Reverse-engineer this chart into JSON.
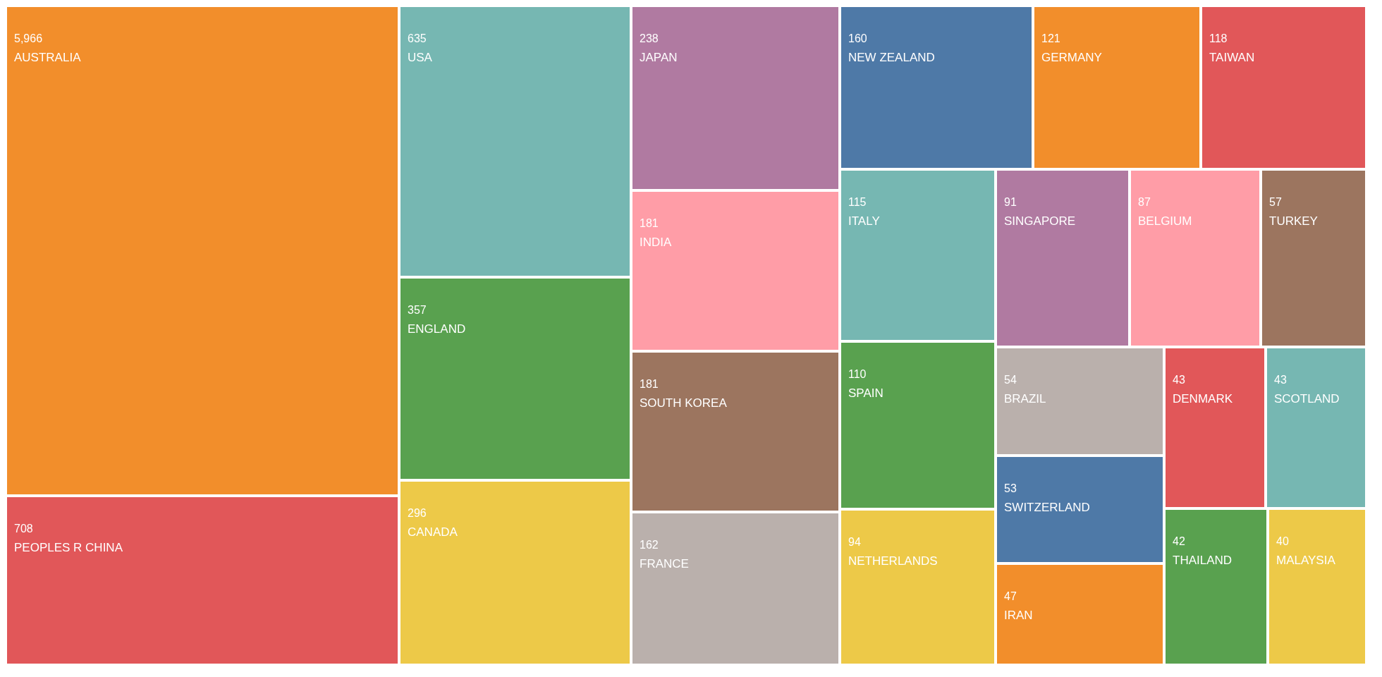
{
  "chart_data": {
    "type": "other",
    "categories": [
      "AUSTRALIA",
      "PEOPLES R CHINA",
      "USA",
      "ENGLAND",
      "CANADA",
      "JAPAN",
      "INDIA",
      "SOUTH KOREA",
      "FRANCE",
      "NEW ZEALAND",
      "GERMANY",
      "TAIWAN",
      "ITALY",
      "SPAIN",
      "NETHERLANDS",
      "SINGAPORE",
      "BELGIUM",
      "TURKEY",
      "BRAZIL",
      "SWITZERLAND",
      "IRAN",
      "DENMARK",
      "SCOTLAND",
      "THAILAND",
      "MALAYSIA"
    ],
    "values": [
      5966,
      708,
      635,
      357,
      296,
      238,
      181,
      181,
      162,
      160,
      121,
      118,
      115,
      110,
      94,
      91,
      87,
      57,
      54,
      53,
      47,
      43,
      43,
      42,
      40
    ],
    "value_labels": [
      "5,966",
      "708",
      "635",
      "357",
      "296",
      "238",
      "181",
      "181",
      "162",
      "160",
      "121",
      "118",
      "115",
      "110",
      "94",
      "91",
      "87",
      "57",
      "54",
      "53",
      "47",
      "43",
      "43",
      "42",
      "40"
    ],
    "colors": [
      "#f28e2b",
      "#e15759",
      "#76b7b2",
      "#59a14f",
      "#edc948",
      "#b07aa1",
      "#ff9da7",
      "#9c755f",
      "#bab0ac",
      "#4e79a7",
      "#f28e2b",
      "#e15759",
      "#76b7b2",
      "#59a14f",
      "#edc948",
      "#b07aa1",
      "#ff9da7",
      "#9c755f",
      "#bab0ac",
      "#4e79a7",
      "#f28e2b",
      "#e15759",
      "#76b7b2",
      "#59a14f",
      "#edc948"
    ]
  }
}
